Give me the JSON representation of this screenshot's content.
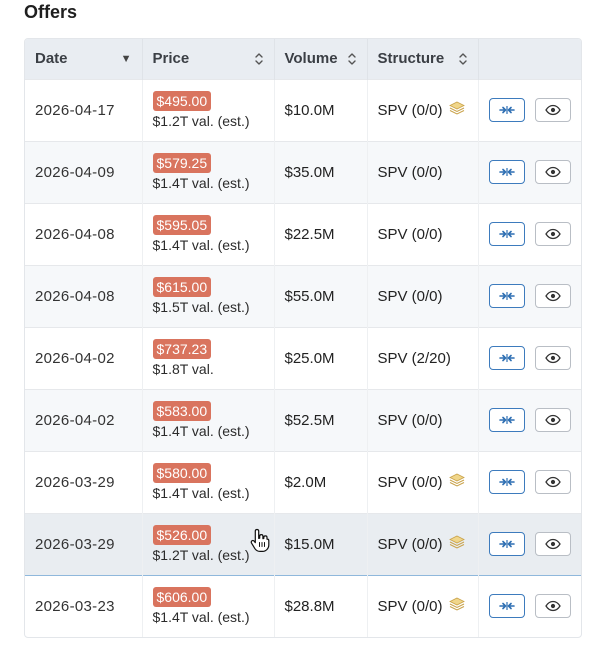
{
  "title": "Offers",
  "table": {
    "columns": [
      {
        "label": "Date",
        "sort": "desc"
      },
      {
        "label": "Price",
        "sort": "both"
      },
      {
        "label": "Volume",
        "sort": "both"
      },
      {
        "label": "Structure",
        "sort": "both"
      },
      {
        "label": "",
        "sort": "none"
      }
    ],
    "rows": [
      {
        "date": "2026-04-17",
        "price": "$495.00",
        "valuation": "$1.2T val. (est.)",
        "volume": "$10.0M",
        "structure": "SPV (0/0)",
        "stack_icon": true
      },
      {
        "date": "2026-04-09",
        "price": "$579.25",
        "valuation": "$1.4T val. (est.)",
        "volume": "$35.0M",
        "structure": "SPV (0/0)",
        "stack_icon": false
      },
      {
        "date": "2026-04-08",
        "price": "$595.05",
        "valuation": "$1.4T val. (est.)",
        "volume": "$22.5M",
        "structure": "SPV (0/0)",
        "stack_icon": false
      },
      {
        "date": "2026-04-08",
        "price": "$615.00",
        "valuation": "$1.5T val. (est.)",
        "volume": "$55.0M",
        "structure": "SPV (0/0)",
        "stack_icon": false
      },
      {
        "date": "2026-04-02",
        "price": "$737.23",
        "valuation": "$1.8T val.",
        "volume": "$25.0M",
        "structure": "SPV (2/20)",
        "stack_icon": false
      },
      {
        "date": "2026-04-02",
        "price": "$583.00",
        "valuation": "$1.4T val. (est.)",
        "volume": "$52.5M",
        "structure": "SPV (0/0)",
        "stack_icon": false
      },
      {
        "date": "2026-03-29",
        "price": "$580.00",
        "valuation": "$1.4T val. (est.)",
        "volume": "$2.0M",
        "structure": "SPV (0/0)",
        "stack_icon": true
      },
      {
        "date": "2026-03-29",
        "price": "$526.00",
        "valuation": "$1.2T val. (est.)",
        "volume": "$15.0M",
        "structure": "SPV (0/0)",
        "stack_icon": true,
        "hovered": true
      },
      {
        "date": "2026-03-23",
        "price": "$606.00",
        "valuation": "$1.4T val. (est.)",
        "volume": "$28.8M",
        "structure": "SPV (0/0)",
        "stack_icon": true
      }
    ]
  },
  "colors": {
    "price_badge": "#d9745e",
    "stack_icon": "#e8c873",
    "compare_button": "#2e6fb3",
    "header_bg": "#e9edf2"
  },
  "icons": {
    "compare": "arrows-collapse-icon",
    "view": "eye-icon",
    "structure_extra": "stack-icon",
    "sort": "sort-icon"
  }
}
